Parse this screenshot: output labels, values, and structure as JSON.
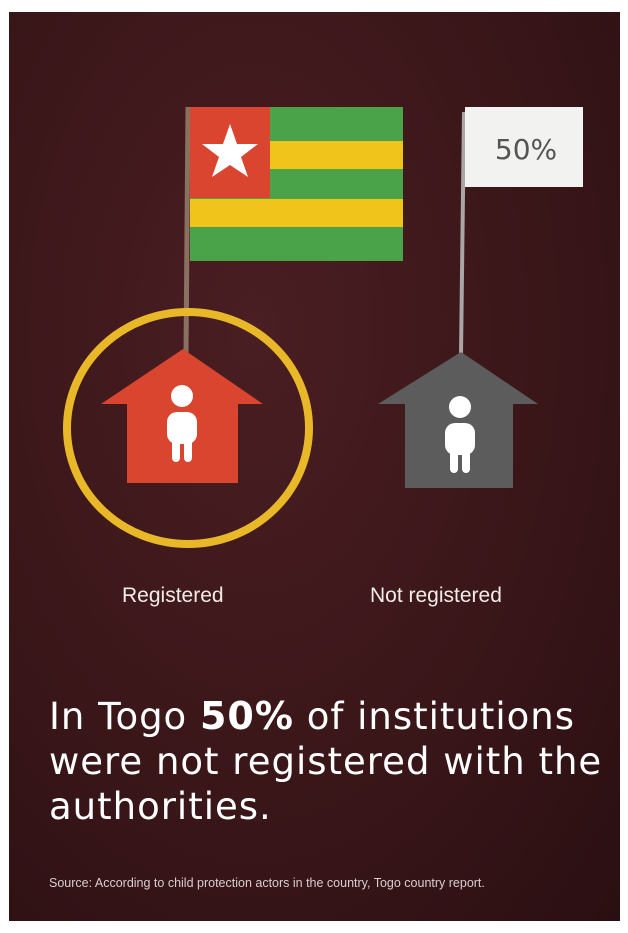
{
  "flag_percent": "50%",
  "labels": {
    "registered": "Registered",
    "not_registered": "Not registered"
  },
  "headline": {
    "part1": "In Togo ",
    "strong": "50%",
    "part2": " of institutions were not registered with the authorities."
  },
  "source": "Source: According to child protection actors in the country, Togo country report.",
  "colors": {
    "background": "#3a1619",
    "registered_house": "#d9452f",
    "not_registered_house": "#5c5c5c",
    "circle": "#e8b829",
    "flag_green": "#4aa349",
    "flag_yellow": "#f1c41c",
    "flag_red": "#d9452f"
  }
}
